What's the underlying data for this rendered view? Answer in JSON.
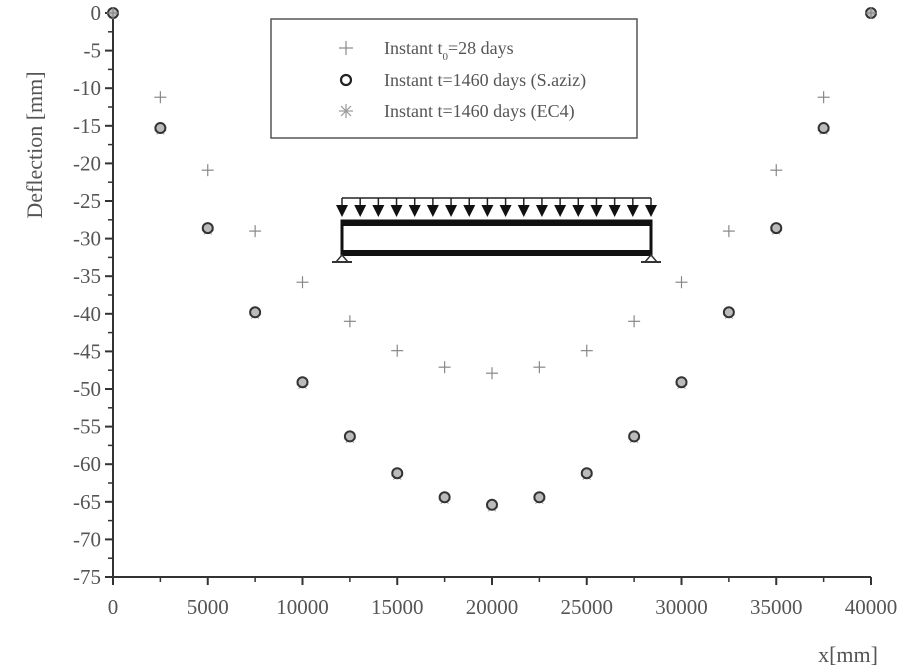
{
  "chart_data": {
    "type": "scatter",
    "title": "",
    "xlabel": "x[mm]",
    "ylabel": "Deflection [mm]",
    "xlim": [
      0,
      40000
    ],
    "ylim": [
      -75,
      0
    ],
    "x_ticks": [
      0,
      5000,
      10000,
      15000,
      20000,
      25000,
      30000,
      35000,
      40000
    ],
    "x_tick_labels": [
      "0",
      "5000",
      "10000",
      "15000",
      "20000",
      "25000",
      "30000",
      "35000",
      "40000"
    ],
    "y_ticks": [
      0,
      -5,
      -10,
      -15,
      -20,
      -25,
      -30,
      -35,
      -40,
      -45,
      -50,
      -55,
      -60,
      -65,
      -70,
      -75
    ],
    "y_tick_labels": [
      "0",
      "-5",
      "-10",
      "-15",
      "-20",
      "-25",
      "-30",
      "-35",
      "-40",
      "-45",
      "-50",
      "-55",
      "-60",
      "-65",
      "-70",
      "-75"
    ],
    "grid": false,
    "legend_position": "upper center",
    "x": [
      0,
      2500,
      5000,
      7500,
      10000,
      12500,
      15000,
      17500,
      20000,
      22500,
      25000,
      27500,
      30000,
      32500,
      35000,
      37500,
      40000
    ],
    "series": [
      {
        "name": "Instant t0=28 days",
        "legend_main": "Instant t",
        "legend_sub": "0",
        "legend_tail": "=28 days",
        "marker": "plus",
        "values": [
          0,
          -11.2,
          -20.9,
          -29.0,
          -35.8,
          -41.0,
          -44.9,
          -47.1,
          -47.9,
          -47.1,
          -44.9,
          -41.0,
          -35.8,
          -29.0,
          -20.9,
          -11.2,
          0
        ]
      },
      {
        "name": "Instant t=1460 days (S.aziz)",
        "marker": "circle",
        "values": [
          0,
          -15.3,
          -28.6,
          -39.8,
          -49.1,
          -56.3,
          -61.2,
          -64.4,
          -65.4,
          -64.4,
          -61.2,
          -56.3,
          -49.1,
          -39.8,
          -28.6,
          -15.3,
          0
        ]
      },
      {
        "name": "Instant t=1460 days (EC4)",
        "marker": "asterisk",
        "values": [
          0,
          -15.5,
          -28.8,
          -40.0,
          -49.3,
          -56.5,
          -61.4,
          -64.6,
          -65.6,
          -64.6,
          -61.4,
          -56.5,
          -49.3,
          -40.0,
          -28.8,
          -15.5,
          0
        ]
      }
    ],
    "annotations": [
      "Simply supported beam diagram with uniformly distributed load (18 arrows)"
    ]
  },
  "colors": {
    "axis": "#333333",
    "text": "#555555",
    "plus_marker": "#888888",
    "circle_marker": "#333333",
    "asterisk_marker": "#aaaaaa",
    "beam": "#111111"
  }
}
